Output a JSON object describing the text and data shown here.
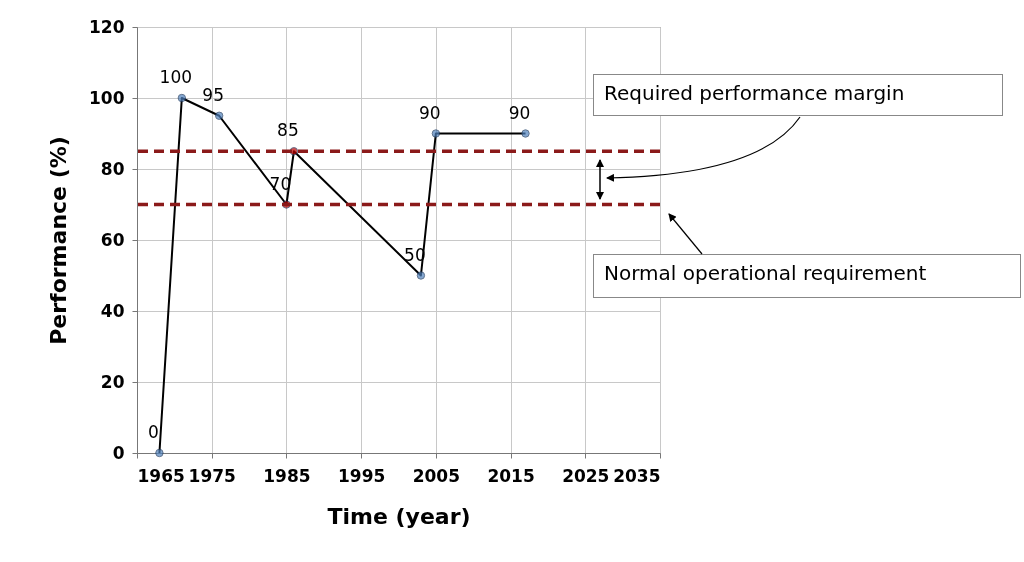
{
  "chart_data": {
    "type": "line",
    "xlabel": "Time (year)",
    "ylabel": "Performance (%)",
    "x": [
      1968,
      1971,
      1976,
      1985,
      1986,
      2003,
      2005,
      2017
    ],
    "series": [
      {
        "color": "#000000",
        "colors": [
          "#4f81bd",
          "#4f81bd",
          "#4f81bd",
          "#c00000",
          "#c00000",
          "#4f81bd",
          "#4f81bd",
          "#4f81bd"
        ],
        "values": [
          0,
          100,
          95,
          70,
          85,
          50,
          90,
          90
        ]
      }
    ],
    "xlim": [
      1965,
      2035
    ],
    "xticks": [
      1965,
      1975,
      1985,
      1995,
      2005,
      2015,
      2025,
      2035
    ],
    "ylim": [
      0,
      120
    ],
    "yticks": [
      0,
      20,
      40,
      60,
      80,
      100,
      120
    ],
    "grid": true,
    "marker": "circle",
    "line_style": "solid",
    "data_labels": true,
    "ref_lines": [
      {
        "axis": "y",
        "value": 85,
        "color": "#8b1a1a",
        "line_style": "dashed"
      },
      {
        "axis": "y",
        "value": 70,
        "color": "#8b1a1a",
        "line_style": "dashed"
      }
    ],
    "annotations": [
      "Required performance margin",
      "Normal operational requirement"
    ]
  }
}
